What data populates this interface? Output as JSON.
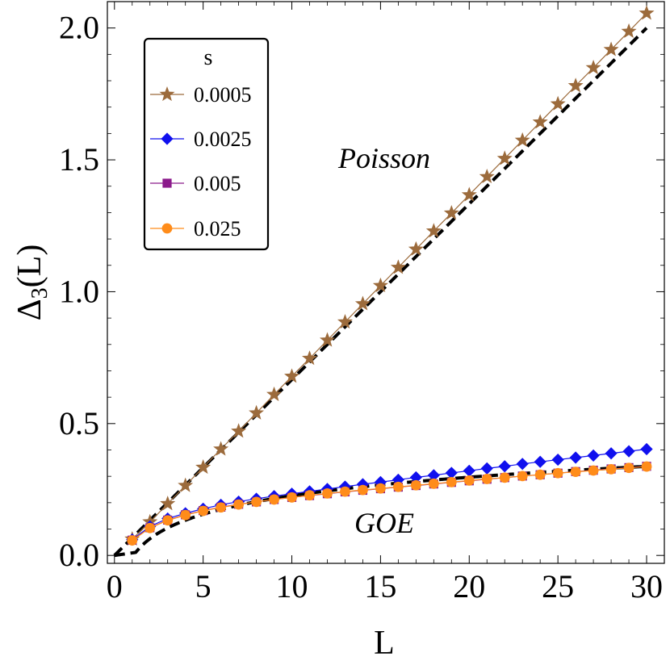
{
  "chart_data": {
    "type": "line",
    "xlabel": "L",
    "ylabel": "Δ3(L)",
    "ylabel_main": "Δ",
    "ylabel_sub": "3",
    "ylabel_tail": "(L)",
    "xlim": [
      -0.4,
      31.0
    ],
    "ylim": [
      -0.03,
      2.1
    ],
    "xticks": [
      "0",
      "5",
      "10",
      "15",
      "20",
      "25",
      "30"
    ],
    "xtick_values": [
      0,
      5,
      10,
      15,
      20,
      25,
      30
    ],
    "yticks": [
      "0.0",
      "0.5",
      "1.0",
      "1.5",
      "2.0"
    ],
    "ytick_values": [
      0.0,
      0.5,
      1.0,
      1.5,
      2.0
    ],
    "legend": {
      "title": "s",
      "placement": "top-left"
    },
    "annotations": [
      {
        "text": "Poisson",
        "x": 15,
        "y": 1.5
      },
      {
        "text": "GOE",
        "x": 15,
        "y": 0.1
      }
    ],
    "x": [
      1,
      2,
      3,
      4,
      5,
      6,
      7,
      8,
      9,
      10,
      11,
      12,
      13,
      14,
      15,
      16,
      17,
      18,
      19,
      20,
      21,
      22,
      23,
      24,
      25,
      26,
      27,
      28,
      29,
      30
    ],
    "series": [
      {
        "name": "0.0005",
        "color": "#9c6b3c",
        "marker": "star",
        "values": [
          0.062,
          0.127,
          0.196,
          0.265,
          0.334,
          0.403,
          0.471,
          0.54,
          0.61,
          0.679,
          0.747,
          0.816,
          0.885,
          0.954,
          1.023,
          1.092,
          1.161,
          1.23,
          1.298,
          1.367,
          1.436,
          1.505,
          1.574,
          1.643,
          1.712,
          1.781,
          1.849,
          1.918,
          1.987,
          2.056
        ]
      },
      {
        "name": "0.0025",
        "color": "#1010ee",
        "marker": "diamond",
        "values": [
          0.06,
          0.11,
          0.14,
          0.16,
          0.177,
          0.192,
          0.204,
          0.215,
          0.225,
          0.234,
          0.243,
          0.252,
          0.261,
          0.27,
          0.278,
          0.287,
          0.296,
          0.304,
          0.313,
          0.321,
          0.33,
          0.338,
          0.347,
          0.355,
          0.363,
          0.371,
          0.379,
          0.387,
          0.395,
          0.403
        ]
      },
      {
        "name": "0.005",
        "color": "#8b1a8b",
        "marker": "square",
        "values": [
          0.058,
          0.105,
          0.134,
          0.154,
          0.17,
          0.183,
          0.194,
          0.203,
          0.212,
          0.22,
          0.227,
          0.234,
          0.241,
          0.247,
          0.253,
          0.259,
          0.265,
          0.271,
          0.277,
          0.283,
          0.289,
          0.295,
          0.301,
          0.306,
          0.312,
          0.318,
          0.323,
          0.328,
          0.333,
          0.338
        ]
      },
      {
        "name": "0.025",
        "color": "#ff8c1a",
        "marker": "circle",
        "values": [
          0.057,
          0.104,
          0.133,
          0.153,
          0.169,
          0.182,
          0.193,
          0.203,
          0.212,
          0.22,
          0.228,
          0.235,
          0.242,
          0.248,
          0.254,
          0.26,
          0.266,
          0.272,
          0.278,
          0.284,
          0.29,
          0.295,
          0.301,
          0.306,
          0.312,
          0.317,
          0.322,
          0.327,
          0.332,
          0.337
        ]
      }
    ],
    "reference_curves": [
      {
        "label": "Poisson",
        "style": "dashed",
        "color": "#000000",
        "formula": "L/15"
      },
      {
        "label": "GOE",
        "style": "dashed",
        "color": "#000000",
        "formula": "(1/pi^2)(ln(2 pi L) + gamma - 5/4 - pi^2/8)"
      }
    ]
  }
}
